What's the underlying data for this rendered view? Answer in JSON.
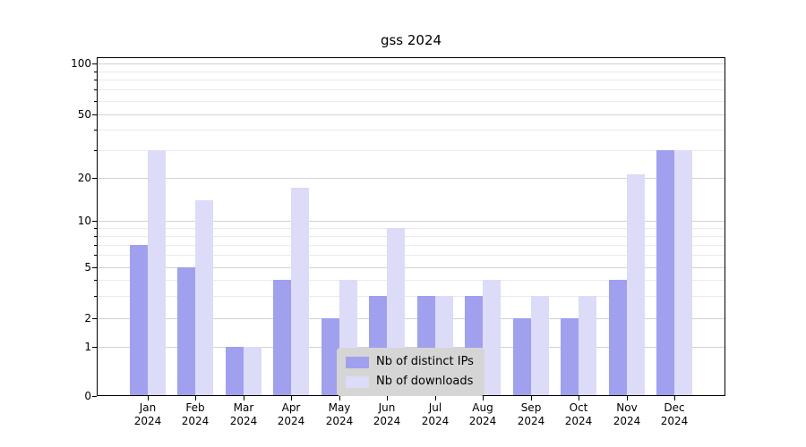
{
  "title": "gss 2024",
  "colors": {
    "distinct_ips_bar": "#a0a0ee",
    "downloads_bar": "#dcdcf8",
    "grid_major": "#d2d2d2",
    "grid_minor": "#eaeaea",
    "axis": "#000000",
    "legend_background": "#d5d5d5"
  },
  "y_axis": {
    "ticks": [
      100,
      50,
      20,
      10,
      5,
      2,
      1,
      0
    ],
    "minor_ticks": [
      90,
      80,
      70,
      60,
      40,
      30,
      9,
      8,
      7,
      6,
      4,
      3
    ]
  },
  "chart_data": {
    "type": "bar",
    "title": "gss 2024",
    "categories": [
      "Jan 2024",
      "Feb 2024",
      "Mar 2024",
      "Apr 2024",
      "May 2024",
      "Jun 2024",
      "Jul 2024",
      "Aug 2024",
      "Sep 2024",
      "Oct 2024",
      "Nov 2024",
      "Dec 2024"
    ],
    "series": [
      {
        "name": "Nb of distinct IPs",
        "color": "#a0a0ee",
        "values": [
          7,
          5,
          1,
          4,
          2,
          3,
          3,
          3,
          2,
          2,
          4,
          30
        ]
      },
      {
        "name": "Nb of downloads",
        "color": "#dcdcf8",
        "values": [
          30,
          14,
          1,
          17,
          4,
          9,
          3,
          4,
          3,
          3,
          21,
          30
        ]
      }
    ],
    "y_scale": "symlog",
    "ylim": [
      0,
      100
    ],
    "grid": true,
    "legend_position": "lower center"
  }
}
